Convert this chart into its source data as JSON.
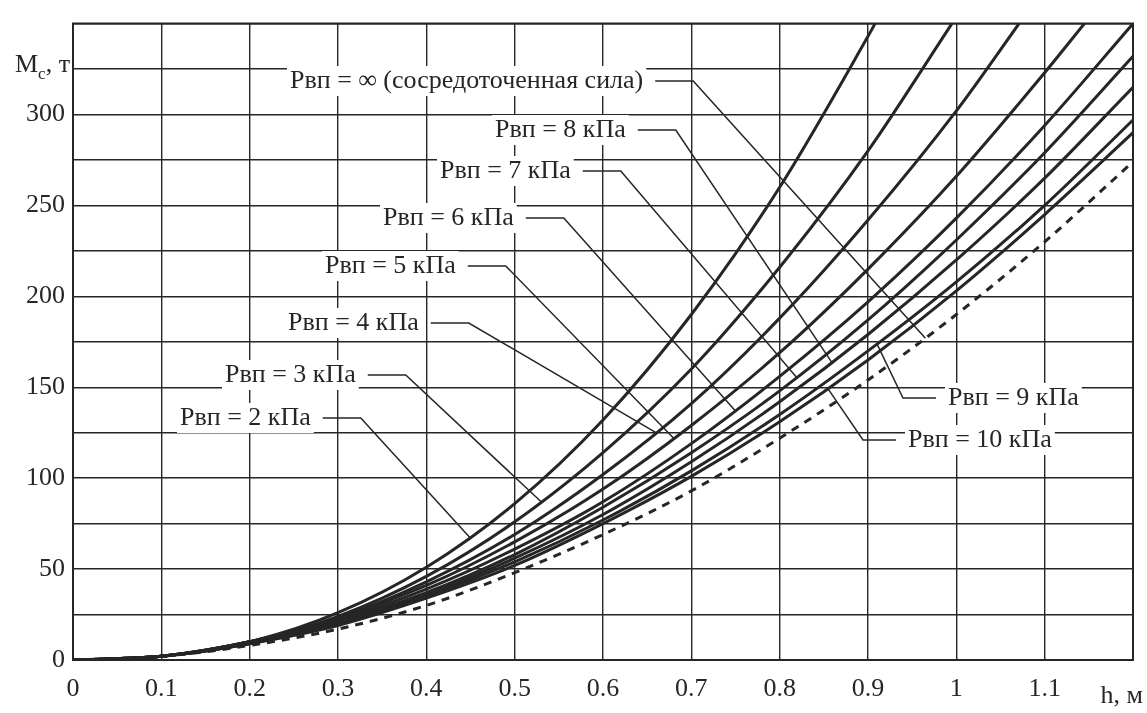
{
  "chart_data": {
    "type": "line",
    "xlabel": "h, м",
    "ylabel": "M$_{c}$, т",
    "xlim": [
      0,
      1.2
    ],
    "ylim": [
      0,
      350
    ],
    "xticks": [
      0,
      0.1,
      0.2,
      0.3,
      0.4,
      0.5,
      0.6,
      0.7,
      0.8,
      0.9,
      1,
      1.1,
      {
        "value": 1.2,
        "label": null
      }
    ],
    "yticks": [
      0,
      {
        "value": 25,
        "label": null
      },
      50,
      {
        "value": 75,
        "label": null
      },
      100,
      {
        "value": 125,
        "label": null
      },
      150,
      {
        "value": 175,
        "label": null
      },
      200,
      {
        "value": 225,
        "label": null
      },
      250,
      {
        "value": 275,
        "label": null
      },
      300,
      {
        "value": 325,
        "label": null
      },
      {
        "value": 350,
        "label": null
      }
    ],
    "grid": true,
    "legend": false,
    "marker": "none",
    "series": [
      {
        "color": "#262626",
        "x": [
          0,
          0.1,
          0.2,
          0.3,
          0.4,
          0.5,
          0.6,
          0.7,
          0.8,
          0.9,
          0.908
        ],
        "values": [
          0,
          2,
          10,
          26,
          51,
          86,
          132,
          190,
          260,
          343,
          350
        ]
      },
      {
        "color": "#262626",
        "x": [
          0,
          0.1,
          0.2,
          0.3,
          0.4,
          0.5,
          0.6,
          0.7,
          0.8,
          0.9,
          0.995
        ],
        "values": [
          0,
          2,
          10,
          24,
          46,
          76,
          114,
          160,
          216,
          280,
          350
        ]
      },
      {
        "color": "#262626",
        "x": [
          0,
          0.1,
          0.2,
          0.3,
          0.4,
          0.5,
          0.6,
          0.7,
          0.8,
          0.9,
          1,
          1.071
        ],
        "values": [
          0,
          2,
          10,
          23,
          43,
          69,
          102,
          141,
          188,
          242,
          302,
          350
        ]
      },
      {
        "color": "#262626",
        "x": [
          0,
          0.1,
          0.2,
          0.3,
          0.4,
          0.5,
          0.6,
          0.7,
          0.8,
          0.9,
          1,
          1.1,
          1.145
        ],
        "values": [
          0,
          2,
          10,
          23,
          41,
          65,
          94,
          129,
          169,
          215,
          266,
          323,
          350
        ]
      },
      {
        "color": "#262626",
        "x": [
          0,
          0.1,
          0.2,
          0.3,
          0.4,
          0.5,
          0.6,
          0.7,
          0.8,
          0.9,
          1,
          1.1,
          1.2
        ],
        "values": [
          0,
          2,
          10,
          22,
          39,
          61,
          87,
          119,
          156,
          197,
          243,
          294,
          350
        ]
      },
      {
        "color": "#262626",
        "x": [
          0,
          0.1,
          0.2,
          0.3,
          0.4,
          0.5,
          0.6,
          0.7,
          0.8,
          0.9,
          1,
          1.1,
          1.2
        ],
        "values": [
          0,
          2,
          9,
          21,
          37,
          58,
          84,
          114,
          148,
          187,
          231,
          279,
          332
        ]
      },
      {
        "color": "#262626",
        "x": [
          0,
          0.1,
          0.2,
          0.3,
          0.4,
          0.5,
          0.6,
          0.7,
          0.8,
          0.9,
          1,
          1.1,
          1.2
        ],
        "values": [
          0,
          2,
          9,
          21,
          36,
          56,
          80,
          109,
          142,
          179,
          220,
          265,
          315
        ]
      },
      {
        "color": "#262626",
        "x": [
          0,
          0.1,
          0.2,
          0.3,
          0.4,
          0.5,
          0.6,
          0.7,
          0.8,
          0.9,
          1,
          1.1,
          1.2
        ],
        "values": [
          0,
          2,
          9,
          20,
          35,
          54,
          77,
          104,
          135,
          170,
          208,
          250,
          297
        ]
      },
      {
        "color": "#262626",
        "x": [
          0,
          0.1,
          0.2,
          0.3,
          0.4,
          0.5,
          0.6,
          0.7,
          0.8,
          0.9,
          1,
          1.1,
          1.2
        ],
        "values": [
          0,
          2,
          9,
          19,
          34,
          52,
          75,
          101,
          131,
          165,
          203,
          245,
          290
        ]
      },
      {
        "color": "#262626",
        "line_style": "dashed",
        "x": [
          0,
          0.1,
          0.2,
          0.3,
          0.4,
          0.5,
          0.6,
          0.7,
          0.8,
          0.9,
          1,
          1.1,
          1.2
        ],
        "values": [
          0,
          2,
          8,
          17,
          30,
          48,
          69,
          93,
          122,
          154,
          190,
          230,
          274
        ]
      }
    ],
    "annotations": [
      {
        "text": "Рвп = ∞ (сосредоточенная сила)",
        "x": 0.965,
        "y": 177
      },
      {
        "text": "Рвп = 8 кПа",
        "x": 0.86,
        "y": 163
      },
      {
        "text": "Рвп = 7 кПа",
        "x": 0.82,
        "y": 155
      },
      {
        "text": "Рвп = 6 кПа",
        "x": 0.75,
        "y": 137
      },
      {
        "text": "Рвп = 5 кПа",
        "x": 0.68,
        "y": 122
      },
      {
        "text": "Рвп = 4 кПа",
        "x": 0.66,
        "y": 125
      },
      {
        "text": "Рвп = 3 кПа",
        "x": 0.53,
        "y": 87
      },
      {
        "text": "Рвп = 2 кПа",
        "x": 0.45,
        "y": 67
      },
      {
        "text": "Рвп = 9 кПа",
        "x": 0.91,
        "y": 174
      },
      {
        "text": "Рвп = 10 кПа",
        "x": 0.855,
        "y": 149
      }
    ]
  }
}
